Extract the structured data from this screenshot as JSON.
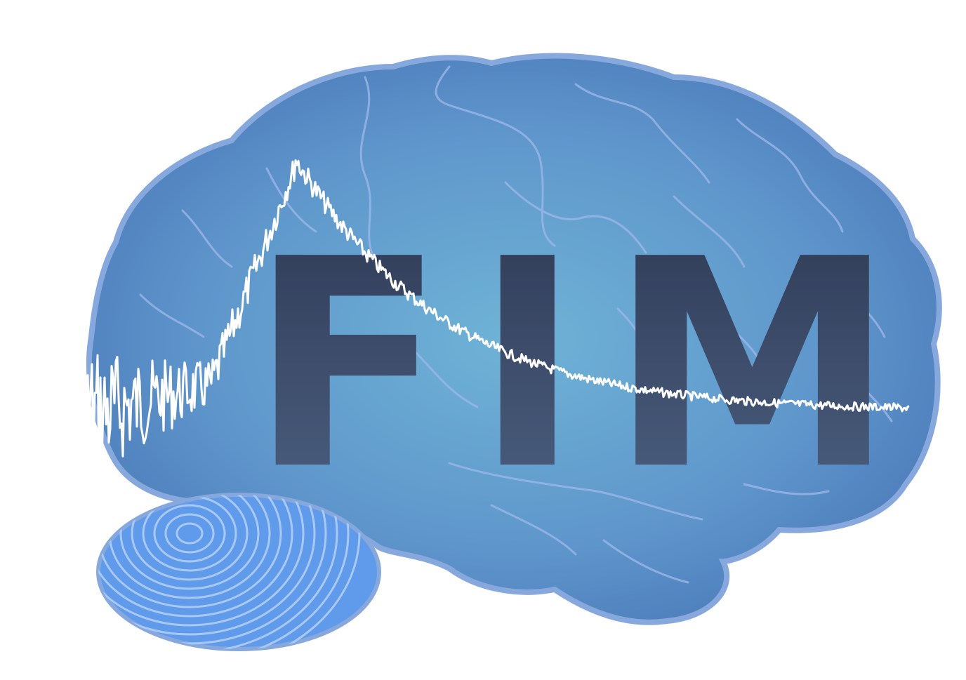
{
  "logo": {
    "text": "FIM",
    "colors": {
      "background": "#ffffff",
      "brain_light": "#6fb3d6",
      "brain_mid": "#5f97cc",
      "brain_dark": "#4a78b8",
      "brain_outline": "#86a8dc",
      "sulci": "#9cb6e8",
      "fingerprint": "#5f9bea",
      "fingerprint_ridge": "#a9c8f4",
      "text_top": "#2e3a55",
      "text_bottom": "#4d6182",
      "signal": "#ffffff"
    },
    "icons": [
      "brain-icon",
      "fingerprint-icon",
      "signal-waveform-icon"
    ]
  }
}
